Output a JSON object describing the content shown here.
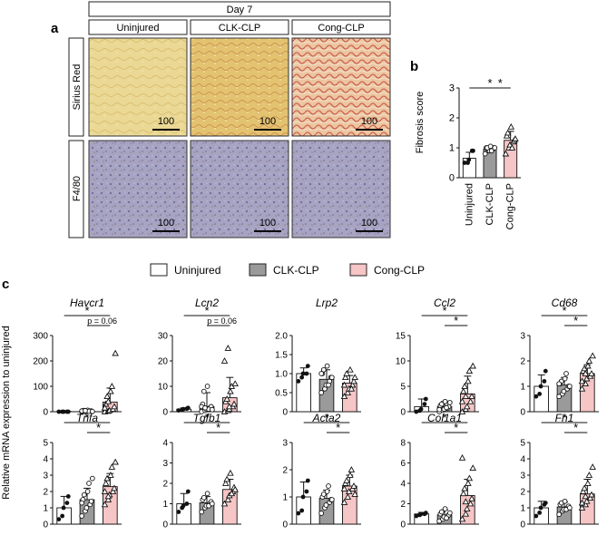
{
  "panel_a": {
    "letter": "a",
    "day_label": "Day 7",
    "groups": [
      "Uninjured",
      "CLK-CLP",
      "Cong-CLP"
    ],
    "rows": [
      "Sirius Red",
      "F4/80"
    ],
    "scale_bar": "100",
    "colors": {
      "sirius_uninjured": "#e9d692",
      "sirius_clk": "#e3c370",
      "sirius_cong": "#e9b48e",
      "sirius_fiber": "#c9574b",
      "f480_base": "#9e9ab9",
      "f480_brown": "#8a6a4a"
    }
  },
  "panel_b": {
    "letter": "b",
    "chart_data": {
      "type": "bar",
      "ylabel": "Fibrosis score",
      "categories": [
        "Uninjured",
        "CLK-CLP",
        "Cong-CLP"
      ],
      "values": [
        0.65,
        0.95,
        1.25
      ],
      "errors": [
        0.2,
        0.1,
        0.3
      ],
      "ylim": [
        0,
        3
      ],
      "yticks": [
        "0",
        "1",
        "2",
        "3"
      ],
      "markers": [
        "circle",
        "circle-open",
        "triangle-open"
      ],
      "fills": [
        "#ffffff",
        "#9a9a9a",
        "#f6c5c5"
      ],
      "points": [
        [
          0.5,
          0.5,
          0.6,
          0.9,
          0.9
        ],
        [
          0.8,
          0.9,
          0.9,
          0.95,
          1.0,
          1.0,
          1.0,
          1.05,
          0.9,
          1.0
        ],
        [
          0.8,
          1.0,
          1.1,
          1.2,
          1.25,
          1.4,
          1.5,
          1.7,
          1.0,
          1.3
        ]
      ],
      "sig": [
        {
          "from": 0,
          "to": 2,
          "label": "*"
        },
        {
          "from": 1,
          "to": 2,
          "label": "*"
        }
      ]
    }
  },
  "panel_c": {
    "letter": "c",
    "legend": [
      {
        "label": "Uninjured",
        "color": "#ffffff"
      },
      {
        "label": "CLK-CLP",
        "color": "#9a9a9a"
      },
      {
        "label": "Cong-CLP",
        "color": "#f6c5c5"
      }
    ],
    "ylabel": "Relative mRNA expression to uninjured",
    "chart_data": [
      {
        "type": "bar",
        "title": "Havcr1",
        "ylim": [
          0,
          300
        ],
        "yticks": [
          "0",
          "100",
          "200",
          "300"
        ],
        "values": [
          1,
          3,
          38
        ],
        "errors": [
          2,
          4,
          55
        ],
        "points": [
          [
            0,
            0,
            0,
            0,
            0
          ],
          [
            0,
            0,
            1,
            2,
            3,
            4,
            5,
            6,
            2,
            1,
            3,
            4
          ],
          [
            0,
            2,
            5,
            10,
            20,
            30,
            60,
            80,
            100,
            230,
            15,
            40
          ]
        ],
        "sig": [
          {
            "from": 0,
            "to": 2,
            "label": "*"
          },
          {
            "from": 1,
            "to": 2,
            "label": "p = 0.06"
          }
        ]
      },
      {
        "type": "bar",
        "title": "Lcn2",
        "ylim": [
          0,
          30
        ],
        "yticks": [
          "0",
          "10",
          "20",
          "30"
        ],
        "values": [
          1,
          2,
          5.5
        ],
        "errors": [
          0.5,
          5.5,
          8
        ],
        "points": [
          [
            0.5,
            0.8,
            1,
            1.2,
            1.5
          ],
          [
            0,
            0.5,
            1,
            1.5,
            2,
            3,
            8,
            10,
            1,
            0.8,
            2,
            1.5
          ],
          [
            0,
            0.5,
            1,
            2,
            3,
            4,
            5,
            8,
            10,
            11,
            20,
            25,
            2
          ]
        ],
        "sig": [
          {
            "from": 0,
            "to": 2,
            "label": "*"
          },
          {
            "from": 1,
            "to": 2,
            "label": "p = 0.06"
          }
        ]
      },
      {
        "type": "bar",
        "title": "Lrp2",
        "ylim": [
          0,
          2
        ],
        "yticks": [
          "0",
          "0.5",
          "1.0",
          "1.5",
          "2.0"
        ],
        "values": [
          1,
          0.85,
          0.75
        ],
        "errors": [
          0.15,
          0.25,
          0.2
        ],
        "points": [
          [
            0.8,
            0.9,
            1.0,
            1.0,
            1.2
          ],
          [
            0.5,
            0.6,
            0.7,
            0.8,
            0.9,
            1.0,
            1.1,
            1.2,
            0.7,
            0.9,
            1.0
          ],
          [
            0.4,
            0.5,
            0.6,
            0.7,
            0.8,
            0.9,
            1.0,
            1.1,
            0.6,
            0.9,
            0.7
          ]
        ],
        "sig": []
      },
      {
        "type": "bar",
        "title": "Ccl2",
        "ylim": [
          0,
          15
        ],
        "yticks": [
          "0",
          "5",
          "10",
          "15"
        ],
        "values": [
          1,
          1,
          3.5
        ],
        "errors": [
          1.5,
          1,
          3.5
        ],
        "points": [
          [
            0,
            0.2,
            0.5,
            1.5,
            2.5
          ],
          [
            0,
            0.3,
            0.5,
            0.7,
            1,
            1.2,
            1.5,
            2,
            0.8,
            1.8,
            0.4
          ],
          [
            0,
            0.5,
            1,
            2,
            3,
            4,
            5,
            6,
            8,
            9,
            2,
            3
          ]
        ],
        "sig": [
          {
            "from": 0,
            "to": 2,
            "label": "*"
          },
          {
            "from": 1,
            "to": 2,
            "label": "*"
          }
        ]
      },
      {
        "type": "bar",
        "title": "Cd68",
        "ylim": [
          0,
          3
        ],
        "yticks": [
          "0",
          "1",
          "2",
          "3"
        ],
        "values": [
          1,
          1.05,
          1.5
        ],
        "errors": [
          0.45,
          0.3,
          0.35
        ],
        "points": [
          [
            0.6,
            0.7,
            1.0,
            1.2,
            1.6
          ],
          [
            0.6,
            0.7,
            0.8,
            0.9,
            1.0,
            1.1,
            1.2,
            1.3,
            1.5,
            1.0,
            1.1
          ],
          [
            0.9,
            1.1,
            1.3,
            1.4,
            1.5,
            1.6,
            1.7,
            1.8,
            2.0,
            2.2,
            1.2,
            1.5
          ]
        ],
        "sig": [
          {
            "from": 0,
            "to": 2,
            "label": "*"
          },
          {
            "from": 1,
            "to": 2,
            "label": "*"
          }
        ]
      },
      {
        "type": "bar",
        "title": "Tnfa",
        "ylim": [
          0,
          5
        ],
        "yticks": [
          "0",
          "1",
          "2",
          "3",
          "4",
          "5"
        ],
        "values": [
          1,
          1.5,
          2.3
        ],
        "errors": [
          0.7,
          0.7,
          0.8
        ],
        "points": [
          [
            0.3,
            0.5,
            1.0,
            1.3,
            1.7
          ],
          [
            0.5,
            0.8,
            1.0,
            1.2,
            1.4,
            1.5,
            1.8,
            2.0,
            2.5,
            2.8,
            1.3
          ],
          [
            1.2,
            1.5,
            1.8,
            2.0,
            2.2,
            2.5,
            2.8,
            3.0,
            3.5,
            3.8,
            2.0,
            1.7
          ]
        ],
        "sig": [
          {
            "from": 0,
            "to": 2,
            "label": "*"
          },
          {
            "from": 1,
            "to": 2,
            "label": "*"
          }
        ]
      },
      {
        "type": "bar",
        "title": "Tgfb1",
        "ylim": [
          0,
          4
        ],
        "yticks": [
          "0",
          "1",
          "2",
          "3",
          "4"
        ],
        "values": [
          1,
          1.05,
          1.7
        ],
        "errors": [
          0.5,
          0.3,
          0.5
        ],
        "points": [
          [
            0.6,
            0.8,
            0.9,
            1.0,
            1.6
          ],
          [
            0.6,
            0.8,
            0.9,
            1.0,
            1.1,
            1.2,
            1.3,
            1.5,
            0.9,
            1.0
          ],
          [
            1.0,
            1.2,
            1.4,
            1.6,
            1.8,
            2.0,
            2.2,
            2.5,
            1.5,
            1.7
          ]
        ],
        "sig": [
          {
            "from": 0,
            "to": 2,
            "label": "*"
          },
          {
            "from": 1,
            "to": 2,
            "label": "*"
          }
        ]
      },
      {
        "type": "bar",
        "title": "Acta2",
        "ylim": [
          0,
          3
        ],
        "yticks": [
          "0",
          "1",
          "2",
          "3"
        ],
        "values": [
          1,
          0.95,
          1.4
        ],
        "errors": [
          0.55,
          0.3,
          0.4
        ],
        "points": [
          [
            0.4,
            0.5,
            1.0,
            1.2,
            1.6
          ],
          [
            0.4,
            0.6,
            0.7,
            0.8,
            0.9,
            1.0,
            1.1,
            1.2,
            1.4,
            0.9
          ],
          [
            0.8,
            1.0,
            1.2,
            1.3,
            1.4,
            1.5,
            1.6,
            1.8,
            2.0,
            1.1,
            1.3
          ]
        ],
        "sig": [
          {
            "from": 0,
            "to": 2,
            "label": "*"
          },
          {
            "from": 1,
            "to": 2,
            "label": "*"
          }
        ]
      },
      {
        "type": "bar",
        "title": "Col1a1",
        "ylim": [
          0,
          8
        ],
        "yticks": [
          "0",
          "2",
          "4",
          "6",
          "8"
        ],
        "values": [
          1,
          0.9,
          2.8
        ],
        "errors": [
          0.15,
          0.5,
          1.6
        ],
        "points": [
          [
            0.8,
            0.9,
            1.0,
            1.0,
            1.1
          ],
          [
            0.3,
            0.5,
            0.7,
            0.8,
            0.9,
            1.0,
            1.2,
            1.5,
            0.6,
            1.1
          ],
          [
            0.5,
            1.0,
            1.5,
            2.0,
            2.5,
            3.0,
            3.5,
            4.0,
            4.5,
            5.5,
            6.5,
            2.2
          ]
        ],
        "sig": [
          {
            "from": 0,
            "to": 2,
            "label": "*"
          },
          {
            "from": 1,
            "to": 2,
            "label": "*"
          }
        ]
      },
      {
        "type": "bar",
        "title": "Fn1",
        "ylim": [
          0,
          5
        ],
        "yticks": [
          "0",
          "1",
          "2",
          "3",
          "4",
          "5"
        ],
        "values": [
          1,
          1.05,
          1.85
        ],
        "errors": [
          0.4,
          0.3,
          0.9
        ],
        "points": [
          [
            0.5,
            0.7,
            1.0,
            1.2,
            1.3
          ],
          [
            0.6,
            0.8,
            0.9,
            1.0,
            1.1,
            1.2,
            1.3,
            1.4,
            0.9,
            1.0
          ],
          [
            1.0,
            1.2,
            1.4,
            1.6,
            1.8,
            2.0,
            2.2,
            2.5,
            3.0,
            3.5,
            1.3,
            1.7
          ]
        ],
        "sig": [
          {
            "from": 0,
            "to": 2,
            "label": "*"
          },
          {
            "from": 1,
            "to": 2,
            "label": "*"
          }
        ]
      }
    ]
  }
}
